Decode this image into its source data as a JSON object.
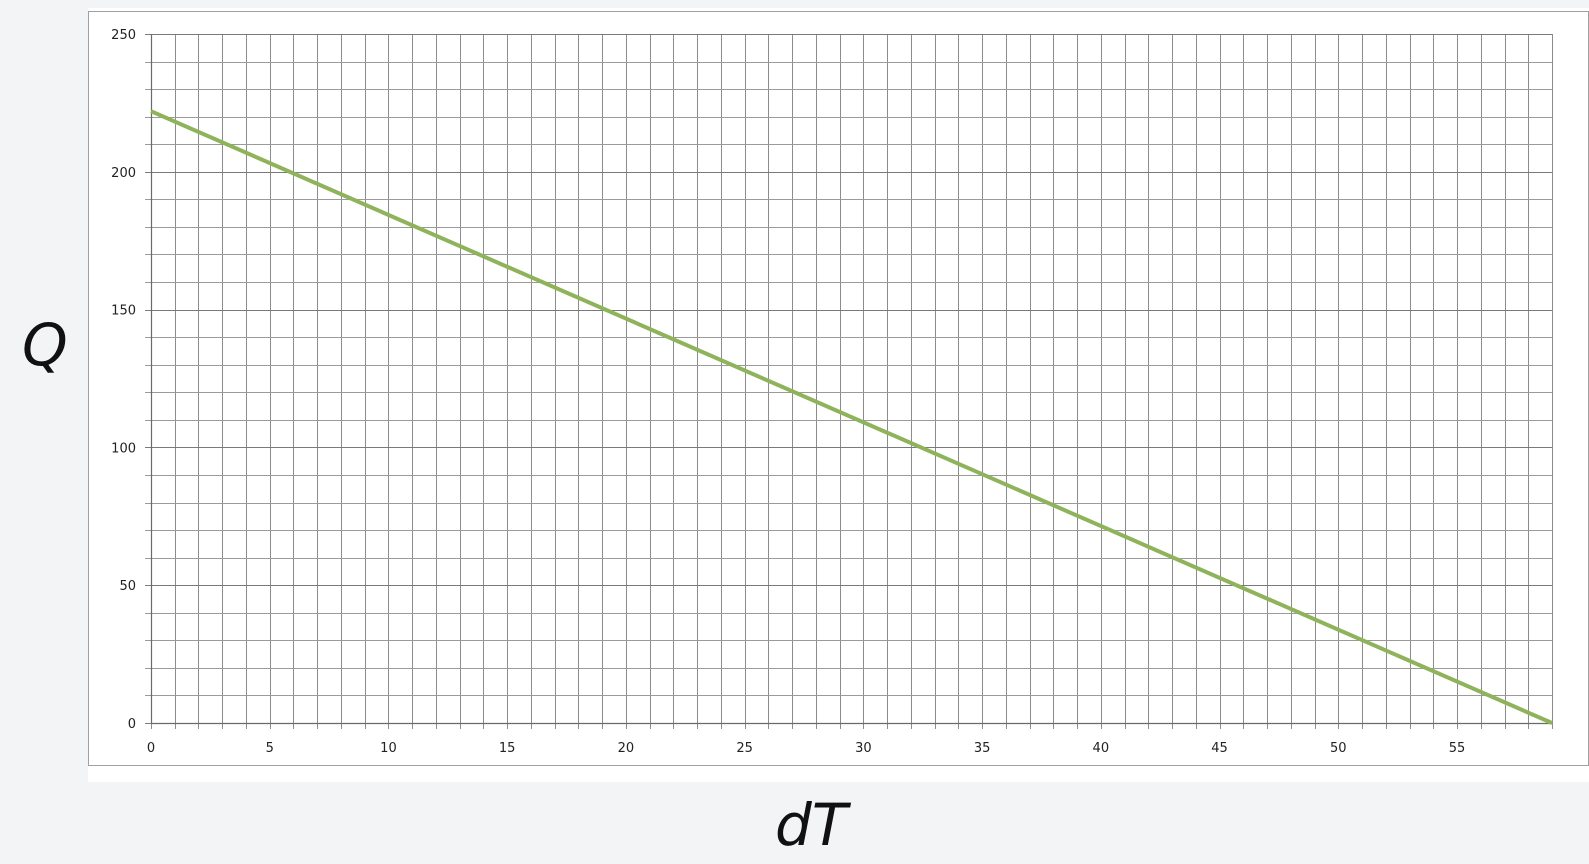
{
  "chart_data": {
    "type": "line",
    "title": "",
    "xlabel": "dT",
    "ylabel": "Q",
    "xlim": [
      0,
      59
    ],
    "ylim": [
      0,
      250
    ],
    "x_major_ticks": [
      0,
      5,
      10,
      15,
      20,
      25,
      30,
      35,
      40,
      45,
      50,
      55
    ],
    "y_major_ticks": [
      0,
      50,
      100,
      150,
      200,
      250
    ],
    "x_minor_step": 1,
    "y_minor_step": 10,
    "grid": true,
    "legend": "none",
    "series": [
      {
        "color": "#8eb35a",
        "x": [
          0,
          59
        ],
        "y": [
          222,
          0
        ]
      }
    ]
  }
}
